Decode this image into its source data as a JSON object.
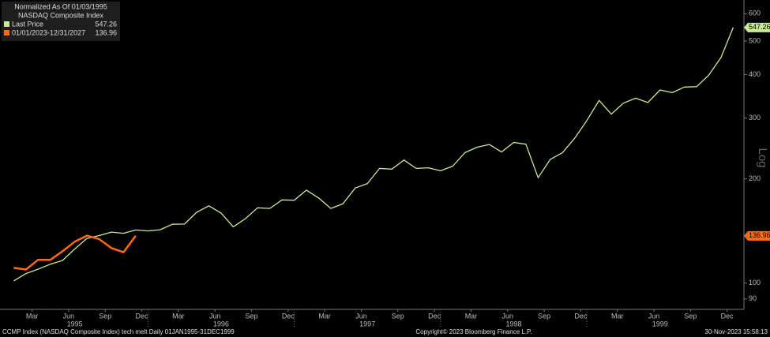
{
  "chart_data": {
    "type": "line",
    "title": "Normalized As Of 01/03/1995",
    "subtitle": "NASDAQ Composite Index",
    "y_label": "Log",
    "log_scale": true,
    "footer_left": "CCMP Index (NASDAQ Composite Index) tech melt  Daily 01JAN1995-31DEC1999",
    "footer_center": "Copyright© 2023 Bloomberg Finance L.P.",
    "footer_right": "30-Nov-2023 15:58:13",
    "x": [
      "1995-01",
      "1995-02",
      "1995-03",
      "1995-04",
      "1995-05",
      "1995-06",
      "1995-07",
      "1995-08",
      "1995-09",
      "1995-10",
      "1995-11",
      "1995-12",
      "1996-01",
      "1996-02",
      "1996-03",
      "1996-04",
      "1996-05",
      "1996-06",
      "1996-07",
      "1996-08",
      "1996-09",
      "1996-10",
      "1996-11",
      "1996-12",
      "1997-01",
      "1997-02",
      "1997-03",
      "1997-04",
      "1997-05",
      "1997-06",
      "1997-07",
      "1997-08",
      "1997-09",
      "1997-10",
      "1997-11",
      "1997-12",
      "1998-01",
      "1998-02",
      "1998-03",
      "1998-04",
      "1998-05",
      "1998-06",
      "1998-07",
      "1998-08",
      "1998-09",
      "1998-10",
      "1998-11",
      "1998-12",
      "1999-01",
      "1999-02",
      "1999-03",
      "1999-04",
      "1999-05",
      "1999-06",
      "1999-07",
      "1999-08",
      "1999-09",
      "1999-10",
      "1999-11",
      "1999-12"
    ],
    "series": [
      {
        "name": "Last Price",
        "color": "#c8ec96",
        "values": [
          101.5,
          106.6,
          109.8,
          113.4,
          116.3,
          125.5,
          134.6,
          137.2,
          140.4,
          139.3,
          142.4,
          141.5,
          142.6,
          147.9,
          148.1,
          160.2,
          167.2,
          159.4,
          145.4,
          153.6,
          165,
          164.3,
          173.9,
          173.6,
          185.6,
          176.2,
          164.3,
          169.6,
          188.3,
          193.9,
          214.4,
          213.4,
          226.7,
          214.4,
          215.3,
          211.1,
          217.7,
          238.2,
          246.9,
          251.4,
          239.2,
          254.8,
          251.9,
          201.6,
          227.8,
          238.2,
          262.2,
          294.9,
          337,
          307.7,
          331,
          342,
          332.3,
          361.2,
          354.8,
          368.4,
          369.3,
          398.9,
          448.6,
          547.26
        ]
      },
      {
        "name": "01/01/2023-12/31/2027",
        "color": "#ff6a13",
        "values": [
          110.7,
          109.5,
          116.8,
          116.8,
          123.6,
          131.7,
          137.1,
          134.1,
          126.3,
          122.8,
          136.96,
          null,
          null,
          null,
          null,
          null,
          null,
          null,
          null,
          null,
          null,
          null,
          null,
          null,
          null,
          null,
          null,
          null,
          null,
          null,
          null,
          null,
          null,
          null,
          null,
          null,
          null,
          null,
          null,
          null,
          null,
          null,
          null,
          null,
          null,
          null,
          null,
          null,
          null,
          null,
          null,
          null,
          null,
          null,
          null,
          null,
          null,
          null,
          null,
          null
        ]
      }
    ],
    "ylim": [
      84,
      640
    ],
    "yticks": [
      90,
      100,
      200,
      300,
      400,
      500,
      600
    ],
    "xticks": [
      {
        "value": "1995-03",
        "label": "Mar"
      },
      {
        "value": "1995-06",
        "label": "Jun"
      },
      {
        "value": "1995-09",
        "label": "Sep"
      },
      {
        "value": "1995-12",
        "label": "Dec"
      },
      {
        "value": "1996-03",
        "label": "Mar"
      },
      {
        "value": "1996-06",
        "label": "Jun"
      },
      {
        "value": "1996-09",
        "label": "Sep"
      },
      {
        "value": "1996-12",
        "label": "Dec"
      },
      {
        "value": "1997-03",
        "label": "Mar"
      },
      {
        "value": "1997-06",
        "label": "Jun"
      },
      {
        "value": "1997-09",
        "label": "Sep"
      },
      {
        "value": "1997-12",
        "label": "Dec"
      },
      {
        "value": "1998-03",
        "label": "Mar"
      },
      {
        "value": "1998-06",
        "label": "Jun"
      },
      {
        "value": "1998-09",
        "label": "Sep"
      },
      {
        "value": "1998-12",
        "label": "Dec"
      },
      {
        "value": "1999-03",
        "label": "Mar"
      },
      {
        "value": "1999-06",
        "label": "Jun"
      },
      {
        "value": "1999-09",
        "label": "Sep"
      },
      {
        "value": "1999-12",
        "label": "Dec"
      }
    ],
    "years": [
      "1995",
      "1996",
      "1997",
      "1998",
      "1999"
    ],
    "legend": "top-left"
  }
}
